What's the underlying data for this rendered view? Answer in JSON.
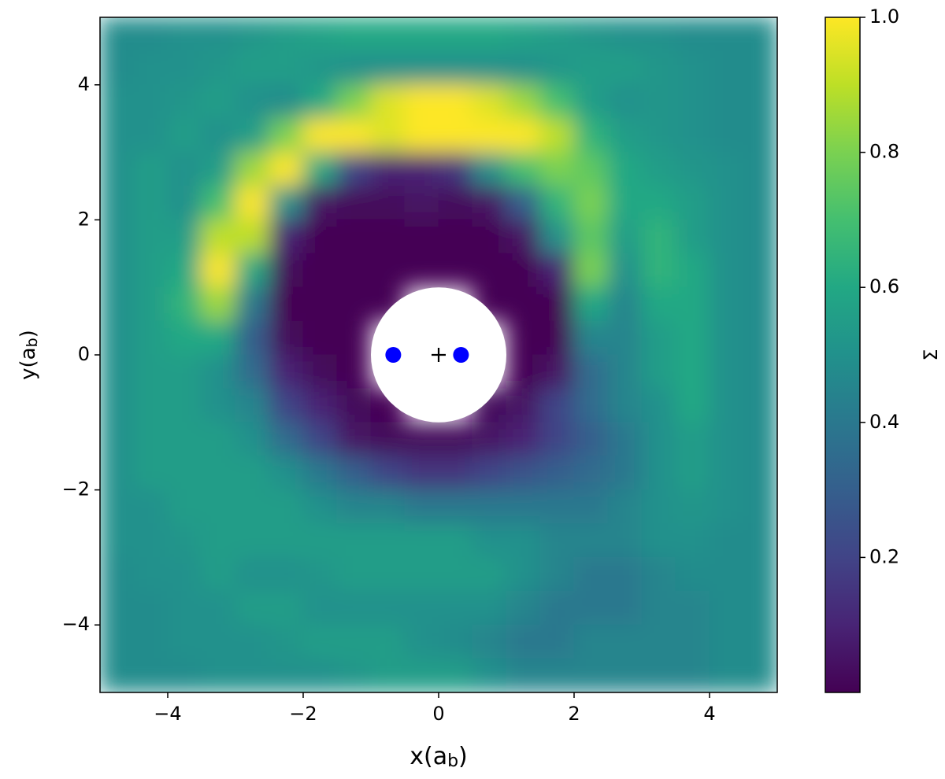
{
  "chart_data": {
    "type": "heatmap",
    "xlabel": [
      "x(a",
      "b",
      ")"
    ],
    "ylabel": [
      "y(a",
      "b",
      ")"
    ],
    "colorbar_label": "Σ",
    "colormap": "viridis",
    "clim": [
      0,
      1
    ],
    "cticks": [
      0.2,
      0.4,
      0.6,
      0.8,
      {
        "value": 1,
        "label": "1.0"
      }
    ],
    "xlim": [
      -5,
      5
    ],
    "ylim": [
      -5,
      5
    ],
    "xticks": [
      {
        "value": -4,
        "label": "−4"
      },
      {
        "value": -2,
        "label": "−2"
      },
      0,
      2,
      4
    ],
    "yticks": [
      {
        "value": -4,
        "label": "−4"
      },
      {
        "value": -2,
        "label": "−2"
      },
      0,
      2,
      4
    ],
    "x": [
      -4.75,
      -4.25,
      -3.75,
      -3.25,
      -2.75,
      -2.25,
      -1.75,
      -1.25,
      -0.75,
      -0.25,
      0.25,
      0.75,
      1.25,
      1.75,
      2.25,
      2.75,
      3.25,
      3.75,
      4.25,
      4.75
    ],
    "y": [
      4.75,
      4.25,
      3.75,
      3.25,
      2.75,
      2.25,
      1.75,
      1.25,
      0.75,
      0.25,
      -0.25,
      -0.75,
      -1.25,
      -1.75,
      -2.25,
      -2.75,
      -3.25,
      -3.75,
      -4.25,
      -4.75
    ],
    "z": [
      [
        0.48,
        0.48,
        0.5,
        0.5,
        0.52,
        0.55,
        0.58,
        0.6,
        0.6,
        0.6,
        0.6,
        0.6,
        0.58,
        0.55,
        0.52,
        0.5,
        0.5,
        0.48,
        0.48,
        0.48
      ],
      [
        0.48,
        0.5,
        0.5,
        0.52,
        0.55,
        0.55,
        0.52,
        0.5,
        0.5,
        0.5,
        0.5,
        0.5,
        0.5,
        0.52,
        0.55,
        0.55,
        0.52,
        0.5,
        0.48,
        0.48
      ],
      [
        0.5,
        0.5,
        0.52,
        0.55,
        0.5,
        0.48,
        0.6,
        0.8,
        0.95,
        1,
        1,
        0.95,
        0.85,
        0.7,
        0.55,
        0.5,
        0.52,
        0.5,
        0.48,
        0.48
      ],
      [
        0.5,
        0.5,
        0.55,
        0.5,
        0.55,
        0.8,
        1,
        1,
        0.95,
        1,
        1,
        1,
        1,
        0.9,
        0.65,
        0.55,
        0.52,
        0.5,
        0.48,
        0.48
      ],
      [
        0.5,
        0.55,
        0.5,
        0.55,
        0.85,
        1,
        0.6,
        0.2,
        0.1,
        0.1,
        0.15,
        0.5,
        0.7,
        0.8,
        0.75,
        0.6,
        0.55,
        0.52,
        0.5,
        0.48
      ],
      [
        0.5,
        0.55,
        0.5,
        0.7,
        1,
        0.5,
        0.05,
        0.02,
        0.02,
        0.05,
        0.02,
        0.05,
        0.3,
        0.65,
        0.8,
        0.6,
        0.6,
        0.55,
        0.5,
        0.48
      ],
      [
        0.5,
        0.55,
        0.55,
        0.9,
        0.9,
        0.1,
        0,
        0,
        0,
        0,
        0,
        0,
        0.05,
        0.5,
        0.75,
        0.55,
        0.65,
        0.55,
        0.5,
        0.48
      ],
      [
        0.5,
        0.55,
        0.6,
        1,
        0.6,
        0.02,
        0,
        0,
        0,
        0,
        0,
        0,
        0,
        0.1,
        0.8,
        0.5,
        0.65,
        0.6,
        0.5,
        0.48
      ],
      [
        0.5,
        0.55,
        0.65,
        0.85,
        0.4,
        0,
        0,
        0,
        0,
        null,
        null,
        0,
        0,
        0,
        0.6,
        0.45,
        0.6,
        0.6,
        0.5,
        0.48
      ],
      [
        0.5,
        0.55,
        0.6,
        0.6,
        0.3,
        0.02,
        0,
        0,
        null,
        null,
        null,
        null,
        0,
        0,
        0.45,
        0.45,
        0.55,
        0.6,
        0.5,
        0.48
      ],
      [
        0.5,
        0.55,
        0.55,
        0.5,
        0.35,
        0.1,
        0.02,
        0,
        null,
        null,
        null,
        null,
        0,
        0.05,
        0.35,
        0.45,
        0.55,
        0.6,
        0.5,
        0.48
      ],
      [
        0.5,
        0.55,
        0.55,
        0.5,
        0.45,
        0.2,
        0.1,
        0.02,
        0,
        null,
        null,
        0.02,
        0.05,
        0.2,
        0.35,
        0.45,
        0.5,
        0.6,
        0.5,
        0.48
      ],
      [
        0.5,
        0.55,
        0.55,
        0.55,
        0.5,
        0.35,
        0.2,
        0.05,
        0.02,
        0.02,
        0.02,
        0.05,
        0.1,
        0.2,
        0.3,
        0.4,
        0.5,
        0.55,
        0.5,
        0.48
      ],
      [
        0.5,
        0.55,
        0.55,
        0.55,
        0.55,
        0.5,
        0.4,
        0.3,
        0.2,
        0.15,
        0.15,
        0.2,
        0.25,
        0.3,
        0.35,
        0.4,
        0.5,
        0.55,
        0.5,
        0.48
      ],
      [
        0.5,
        0.5,
        0.55,
        0.55,
        0.55,
        0.55,
        0.5,
        0.45,
        0.45,
        0.4,
        0.4,
        0.4,
        0.4,
        0.4,
        0.4,
        0.45,
        0.5,
        0.52,
        0.5,
        0.48
      ],
      [
        0.5,
        0.5,
        0.52,
        0.55,
        0.55,
        0.55,
        0.55,
        0.55,
        0.55,
        0.55,
        0.55,
        0.5,
        0.5,
        0.45,
        0.45,
        0.45,
        0.5,
        0.5,
        0.48,
        0.48
      ],
      [
        0.48,
        0.5,
        0.5,
        0.55,
        0.5,
        0.5,
        0.52,
        0.55,
        0.55,
        0.55,
        0.55,
        0.55,
        0.5,
        0.45,
        0.4,
        0.4,
        0.45,
        0.48,
        0.48,
        0.48
      ],
      [
        0.48,
        0.48,
        0.5,
        0.5,
        0.55,
        0.55,
        0.5,
        0.5,
        0.5,
        0.5,
        0.5,
        0.5,
        0.45,
        0.4,
        0.4,
        0.4,
        0.45,
        0.45,
        0.48,
        0.48
      ],
      [
        0.48,
        0.48,
        0.5,
        0.5,
        0.5,
        0.52,
        0.55,
        0.55,
        0.55,
        0.5,
        0.48,
        0.45,
        0.4,
        0.4,
        0.45,
        0.45,
        0.45,
        0.45,
        0.48,
        0.48
      ],
      [
        0.48,
        0.48,
        0.48,
        0.5,
        0.5,
        0.5,
        0.5,
        0.52,
        0.55,
        0.55,
        0.55,
        0.5,
        0.45,
        0.45,
        0.45,
        0.45,
        0.45,
        0.45,
        0.48,
        0.48
      ]
    ],
    "hole": {
      "x": 0,
      "y": 0,
      "r": 1
    },
    "binary": {
      "x": [
        -0.67,
        0.33
      ],
      "y": [
        0,
        0
      ],
      "color": "#0000ff"
    },
    "center_of_mass": {
      "x": 0,
      "y": 0,
      "color": "#000000"
    }
  }
}
